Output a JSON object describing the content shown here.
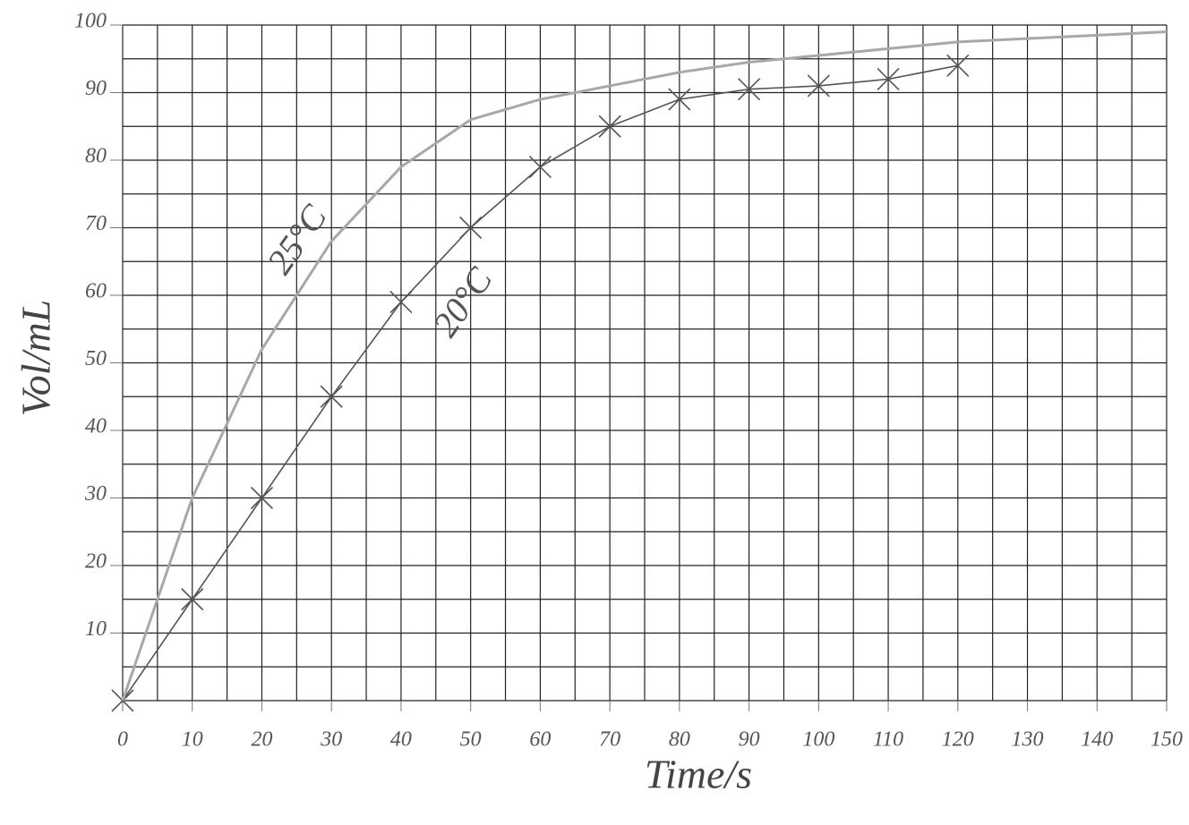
{
  "chart_data": {
    "type": "line",
    "x_label": "Time/s",
    "y_label": "Vol/mL",
    "xlim": [
      0,
      150
    ],
    "ylim": [
      0,
      100
    ],
    "xticks": [
      0,
      10,
      20,
      30,
      40,
      50,
      60,
      70,
      80,
      90,
      100,
      110,
      120,
      130,
      140,
      150
    ],
    "yticks": [
      10,
      20,
      30,
      40,
      50,
      60,
      70,
      80,
      90,
      100
    ],
    "xgrid": [
      0,
      5,
      10,
      15,
      20,
      25,
      30,
      35,
      40,
      45,
      50,
      55,
      60,
      65,
      70,
      75,
      80,
      85,
      90,
      95,
      100,
      105,
      110,
      115,
      120,
      125,
      130,
      135,
      140,
      145,
      150
    ],
    "ygrid": [
      0,
      5,
      10,
      15,
      20,
      25,
      30,
      35,
      40,
      45,
      50,
      55,
      60,
      65,
      70,
      75,
      80,
      85,
      90,
      95,
      100
    ],
    "grid": true,
    "series": [
      {
        "name": "20°C",
        "color": "#555555",
        "marker": "x",
        "x": [
          0,
          10,
          20,
          30,
          40,
          50,
          60,
          70,
          80,
          90,
          100,
          110,
          120
        ],
        "values": [
          0,
          15,
          30,
          45,
          59,
          70,
          79,
          85,
          89,
          90.5,
          91,
          92,
          94
        ]
      },
      {
        "name": "25°C",
        "color": "#a8a8a8",
        "marker": "none",
        "x": [
          0,
          10,
          20,
          30,
          40,
          50,
          60,
          70,
          80,
          90,
          100,
          110,
          120,
          130,
          140,
          150
        ],
        "values": [
          0,
          30,
          52,
          68,
          79,
          86,
          89,
          91,
          93,
          94.5,
          95.5,
          96.5,
          97.5,
          98,
          98.5,
          99
        ]
      }
    ]
  }
}
